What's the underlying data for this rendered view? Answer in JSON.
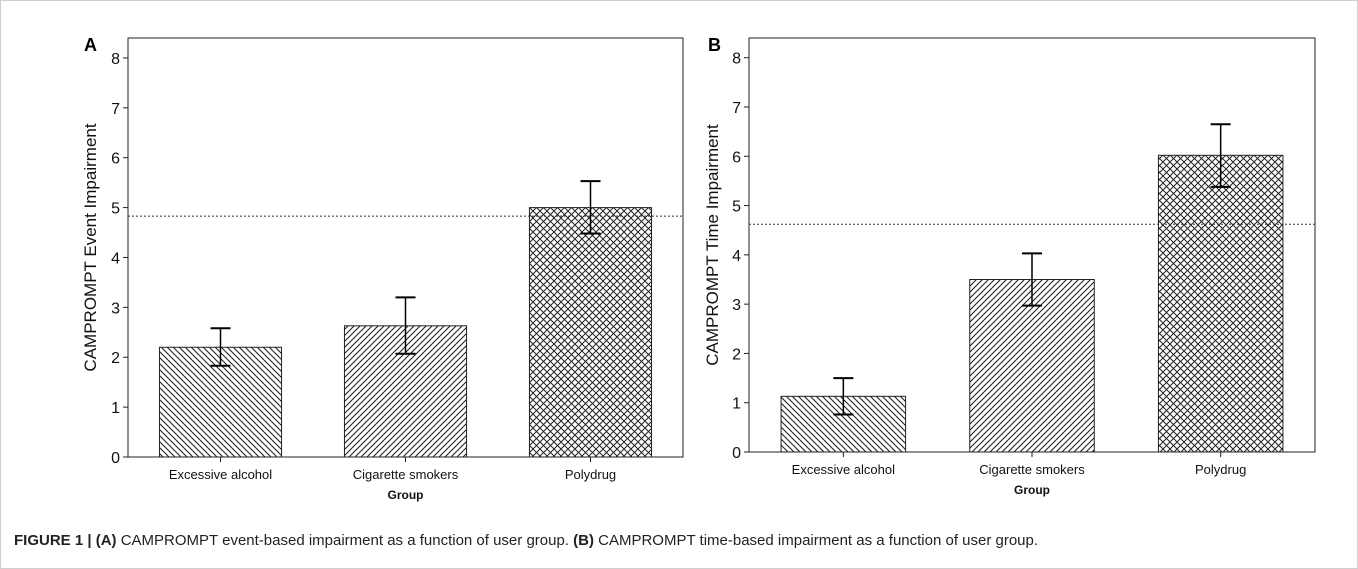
{
  "chart_data": [
    {
      "type": "bar",
      "panel": "A",
      "categories": [
        "Excessive alcohol",
        "Cigarette smokers",
        "Polydrug"
      ],
      "values": [
        2.2,
        2.63,
        5.0
      ],
      "error_low": [
        1.83,
        2.07,
        4.48
      ],
      "error_high": [
        2.58,
        3.2,
        5.53
      ],
      "reference_line": 4.83,
      "xlabel": "Group",
      "ylabel": "CAMPROMPT Event Impairment",
      "ylim": [
        0,
        8.4
      ],
      "yticks": [
        0,
        1,
        2,
        3,
        4,
        5,
        6,
        7,
        8
      ],
      "patterns": [
        "hatch-back",
        "hatch-forward",
        "crosshatch"
      ]
    },
    {
      "type": "bar",
      "panel": "B",
      "categories": [
        "Excessive alcohol",
        "Cigarette smokers",
        "Polydrug"
      ],
      "values": [
        1.13,
        3.5,
        6.02
      ],
      "error_low": [
        0.76,
        2.97,
        5.38
      ],
      "error_high": [
        1.5,
        4.03,
        6.65
      ],
      "reference_line": 4.62,
      "xlabel": "Group",
      "ylabel": "CAMPROMPT Time Impairment",
      "ylim": [
        0,
        8.4
      ],
      "yticks": [
        0,
        1,
        2,
        3,
        4,
        5,
        6,
        7,
        8
      ],
      "patterns": [
        "hatch-back",
        "hatch-forward",
        "crosshatch"
      ]
    }
  ],
  "caption": {
    "figure": "FIGURE 1 |",
    "a_marker": "(A)",
    "a_text": " CAMPROMPT event-based impairment as a function of user group. ",
    "b_marker": "(B)",
    "b_text": " CAMPROMPT time-based impairment as a function of user group."
  }
}
